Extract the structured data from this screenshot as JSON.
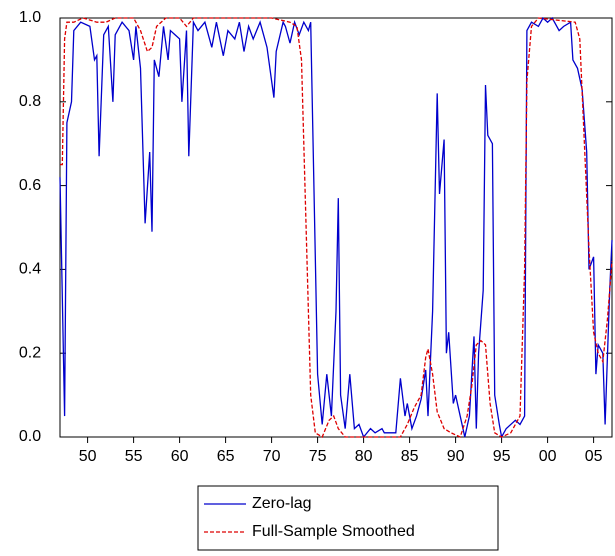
{
  "chart_data": {
    "type": "line",
    "xlim": [
      1947,
      2007
    ],
    "ylim": [
      0,
      1
    ],
    "xticks": [
      {
        "value": 1950,
        "label": "50"
      },
      {
        "value": 1955,
        "label": "55"
      },
      {
        "value": 1960,
        "label": "60"
      },
      {
        "value": 1965,
        "label": "65"
      },
      {
        "value": 1970,
        "label": "70"
      },
      {
        "value": 1975,
        "label": "75"
      },
      {
        "value": 1980,
        "label": "80"
      },
      {
        "value": 1985,
        "label": "85"
      },
      {
        "value": 1990,
        "label": "90"
      },
      {
        "value": 1995,
        "label": "95"
      },
      {
        "value": 2000,
        "label": "00"
      },
      {
        "value": 2005,
        "label": "05"
      }
    ],
    "yticks": [
      {
        "value": 0,
        "label": "0.0"
      },
      {
        "value": 0.2,
        "label": "0.2"
      },
      {
        "value": 0.4,
        "label": "0.4"
      },
      {
        "value": 0.6,
        "label": "0.6"
      },
      {
        "value": 0.8,
        "label": "0.8"
      },
      {
        "value": 1,
        "label": "1.0"
      }
    ],
    "grid": false,
    "legend": "bottom",
    "series": [
      {
        "name": "Zero-lag",
        "color": "#0000cc",
        "dash": false,
        "x": [
          1947.0,
          1947.5,
          1947.75,
          1948.25,
          1948.5,
          1949.25,
          1950.25,
          1950.75,
          1951.0,
          1951.25,
          1951.75,
          1952.25,
          1952.75,
          1953.0,
          1953.75,
          1954.5,
          1955.0,
          1955.25,
          1955.75,
          1956.25,
          1956.75,
          1957.0,
          1957.25,
          1957.75,
          1958.25,
          1958.75,
          1959.0,
          1959.5,
          1960.0,
          1960.25,
          1960.75,
          1961.0,
          1961.5,
          1962.0,
          1962.75,
          1963.5,
          1964.0,
          1964.75,
          1965.25,
          1966.0,
          1966.5,
          1967.0,
          1967.5,
          1968.0,
          1968.75,
          1969.5,
          1970.25,
          1970.5,
          1971.25,
          1971.5,
          1972.0,
          1972.5,
          1973.0,
          1973.5,
          1974.0,
          1974.25,
          1975.0,
          1975.5,
          1976.0,
          1976.5,
          1977.0,
          1977.25,
          1977.5,
          1978.0,
          1978.5,
          1979.0,
          1979.5,
          1980.0,
          1980.75,
          1981.25,
          1982.0,
          1982.25,
          1983.0,
          1983.5,
          1984.0,
          1984.5,
          1984.75,
          1985.25,
          1985.75,
          1986.25,
          1986.75,
          1987.0,
          1987.5,
          1988.0,
          1988.25,
          1988.75,
          1989.0,
          1989.25,
          1989.75,
          1990.0,
          1990.5,
          1991.0,
          1991.5,
          1992.0,
          1992.25,
          1992.5,
          1993.0,
          1993.25,
          1993.5,
          1994.0,
          1994.25,
          1994.75,
          1995.0,
          1995.5,
          1996.0,
          1996.5,
          1997.0,
          1997.5,
          1997.75,
          1998.25,
          1999.0,
          1999.5,
          2000.0,
          2000.5,
          2001.25,
          2001.75,
          2002.5,
          2002.75,
          2003.25,
          2003.75,
          2004.25,
          2004.5,
          2005.0,
          2005.25,
          2005.5,
          2006.0,
          2006.25,
          2006.75,
          2007.0
        ],
        "values": [
          0.62,
          0.05,
          0.75,
          0.8,
          0.97,
          0.99,
          0.98,
          0.9,
          0.91,
          0.67,
          0.96,
          0.98,
          0.8,
          0.96,
          0.99,
          0.97,
          0.9,
          0.98,
          0.88,
          0.51,
          0.68,
          0.49,
          0.9,
          0.86,
          0.98,
          0.9,
          0.97,
          0.96,
          0.95,
          0.8,
          0.97,
          0.67,
          0.99,
          0.97,
          0.99,
          0.93,
          0.99,
          0.91,
          0.97,
          0.95,
          0.99,
          0.92,
          0.98,
          0.95,
          0.99,
          0.93,
          0.81,
          0.92,
          0.99,
          0.98,
          0.94,
          0.99,
          0.96,
          0.99,
          0.97,
          0.99,
          0.15,
          0.03,
          0.15,
          0.05,
          0.3,
          0.57,
          0.1,
          0.02,
          0.15,
          0.02,
          0.03,
          0.0,
          0.02,
          0.01,
          0.02,
          0.01,
          0.01,
          0.01,
          0.14,
          0.05,
          0.08,
          0.02,
          0.05,
          0.09,
          0.16,
          0.05,
          0.3,
          0.82,
          0.58,
          0.71,
          0.2,
          0.25,
          0.08,
          0.1,
          0.05,
          0.0,
          0.05,
          0.24,
          0.02,
          0.2,
          0.35,
          0.84,
          0.72,
          0.7,
          0.1,
          0.03,
          0.0,
          0.02,
          0.03,
          0.04,
          0.03,
          0.05,
          0.97,
          0.99,
          0.98,
          1.0,
          0.99,
          1.0,
          0.97,
          0.98,
          0.99,
          0.9,
          0.88,
          0.83,
          0.68,
          0.4,
          0.43,
          0.15,
          0.22,
          0.2,
          0.03,
          0.35,
          0.47
        ]
      },
      {
        "name": "Full-Sample Smoothed",
        "color": "#dd0000",
        "dash": true,
        "x": [
          1947.0,
          1947.25,
          1947.5,
          1947.75,
          1948.5,
          1949.5,
          1951.0,
          1952.0,
          1953.0,
          1955.0,
          1955.75,
          1956.5,
          1957.0,
          1957.5,
          1958.5,
          1960.0,
          1960.75,
          1961.5,
          1970.0,
          1972.0,
          1972.75,
          1973.25,
          1973.75,
          1974.25,
          1974.75,
          1975.5,
          1976.25,
          1976.75,
          1977.25,
          1978.0,
          1984.0,
          1984.75,
          1985.5,
          1986.25,
          1986.75,
          1987.0,
          1987.5,
          1988.0,
          1988.75,
          1989.5,
          1990.5,
          1991.25,
          1991.75,
          1992.25,
          1992.75,
          1993.25,
          1993.75,
          1994.25,
          1995.0,
          1996.0,
          1997.0,
          1997.5,
          1997.75,
          1998.25,
          1999.0,
          2003.0,
          2003.5,
          2004.0,
          2004.5,
          2005.0,
          2005.5,
          2006.0,
          2006.5,
          2007.0
        ],
        "values": [
          0.65,
          0.65,
          0.95,
          0.99,
          0.99,
          1.0,
          0.99,
          0.99,
          1.0,
          1.0,
          0.97,
          0.92,
          0.93,
          0.98,
          1.0,
          1.0,
          0.98,
          1.0,
          1.0,
          0.99,
          0.98,
          0.9,
          0.5,
          0.1,
          0.01,
          0.0,
          0.04,
          0.05,
          0.02,
          0.0,
          0.0,
          0.03,
          0.07,
          0.1,
          0.19,
          0.21,
          0.15,
          0.06,
          0.02,
          0.01,
          0.0,
          0.05,
          0.12,
          0.22,
          0.23,
          0.22,
          0.08,
          0.01,
          0.0,
          0.01,
          0.05,
          0.4,
          0.85,
          0.98,
          1.0,
          0.99,
          0.95,
          0.7,
          0.45,
          0.25,
          0.2,
          0.18,
          0.28,
          0.42
        ]
      }
    ]
  }
}
